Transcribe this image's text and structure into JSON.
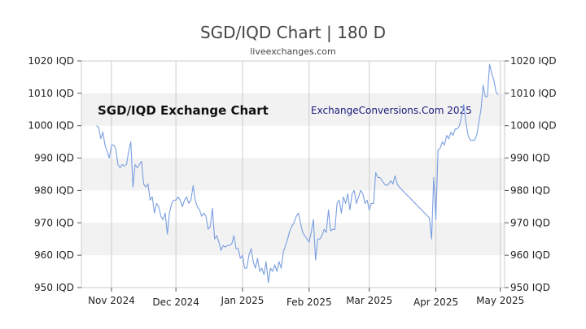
{
  "header": {
    "title": "SGD/IQD Chart | 180 D",
    "subtitle": "liveexchanges.com"
  },
  "watermarks": {
    "left": "SGD/IQD Exchange Chart",
    "right": "ExchangeConversions.Com 2025"
  },
  "colors": {
    "line": "#7a9ee0",
    "band": "#f2f2f2",
    "grid": "#cccccc"
  },
  "chart_data": {
    "type": "line",
    "ylim": [
      950,
      1020
    ],
    "grid": true,
    "y_ticks": [
      {
        "value": 950,
        "label": "950 IQD"
      },
      {
        "value": 960,
        "label": "960 IQD"
      },
      {
        "value": 970,
        "label": "970 IQD"
      },
      {
        "value": 980,
        "label": "980 IQD"
      },
      {
        "value": 990,
        "label": "990 IQD"
      },
      {
        "value": 1000,
        "label": "1000 IQD"
      },
      {
        "value": 1010,
        "label": "1010 IQD"
      },
      {
        "value": 1020,
        "label": "1020 IQD"
      }
    ],
    "x_ticks": [
      {
        "date": "2024-11-01",
        "label": "Nov 2024"
      },
      {
        "date": "2024-12-01",
        "label": "Dec 2024"
      },
      {
        "date": "2025-01-01",
        "label": "Jan 2025"
      },
      {
        "date": "2025-02-01",
        "label": "Feb 2025"
      },
      {
        "date": "2025-03-01",
        "label": "Mar 2025"
      },
      {
        "date": "2025-04-01",
        "label": "Apr 2025"
      },
      {
        "date": "2025-05-01",
        "label": "May 2025"
      }
    ],
    "series": [
      {
        "points": [
          [
            "2024-10-25",
            1000
          ],
          [
            "2024-10-26",
            999.5
          ],
          [
            "2024-10-27",
            996
          ],
          [
            "2024-10-28",
            998
          ],
          [
            "2024-10-29",
            994
          ],
          [
            "2024-10-30",
            992
          ],
          [
            "2024-10-31",
            990
          ],
          [
            "2024-11-01",
            994
          ],
          [
            "2024-11-02",
            994
          ],
          [
            "2024-11-03",
            993
          ],
          [
            "2024-11-04",
            988
          ],
          [
            "2024-11-05",
            987
          ],
          [
            "2024-11-06",
            988
          ],
          [
            "2024-11-07",
            987.5
          ],
          [
            "2024-11-08",
            988
          ],
          [
            "2024-11-09",
            992
          ],
          [
            "2024-11-10",
            995
          ],
          [
            "2024-11-11",
            981
          ],
          [
            "2024-11-12",
            988
          ],
          [
            "2024-11-13",
            987
          ],
          [
            "2024-11-14",
            988
          ],
          [
            "2024-11-15",
            989
          ],
          [
            "2024-11-16",
            982
          ],
          [
            "2024-11-17",
            981
          ],
          [
            "2024-11-18",
            982
          ],
          [
            "2024-11-19",
            977
          ],
          [
            "2024-11-20",
            978
          ],
          [
            "2024-11-21",
            973
          ],
          [
            "2024-11-22",
            976
          ],
          [
            "2024-11-23",
            975
          ],
          [
            "2024-11-24",
            972
          ],
          [
            "2024-11-25",
            971
          ],
          [
            "2024-11-26",
            973
          ],
          [
            "2024-11-27",
            966.5
          ],
          [
            "2024-11-28",
            973
          ],
          [
            "2024-11-29",
            976
          ],
          [
            "2024-11-30",
            977
          ],
          [
            "2024-12-01",
            977
          ],
          [
            "2024-12-02",
            978
          ],
          [
            "2024-12-03",
            977
          ],
          [
            "2024-12-04",
            975
          ],
          [
            "2024-12-05",
            977
          ],
          [
            "2024-12-06",
            978
          ],
          [
            "2024-12-07",
            976
          ],
          [
            "2024-12-08",
            977
          ],
          [
            "2024-12-09",
            981.5
          ],
          [
            "2024-12-10",
            977
          ],
          [
            "2024-12-11",
            975
          ],
          [
            "2024-12-12",
            974
          ],
          [
            "2024-12-13",
            972
          ],
          [
            "2024-12-14",
            973
          ],
          [
            "2024-12-15",
            972
          ],
          [
            "2024-12-16",
            968
          ],
          [
            "2024-12-17",
            969
          ],
          [
            "2024-12-18",
            974.5
          ],
          [
            "2024-12-19",
            965
          ],
          [
            "2024-12-20",
            966
          ],
          [
            "2024-12-21",
            964
          ],
          [
            "2024-12-22",
            961.5
          ],
          [
            "2024-12-23",
            963
          ],
          [
            "2024-12-24",
            962.5
          ],
          [
            "2024-12-25",
            963
          ],
          [
            "2024-12-26",
            963
          ],
          [
            "2024-12-27",
            963.5
          ],
          [
            "2024-12-28",
            966
          ],
          [
            "2024-12-29",
            962
          ],
          [
            "2024-12-30",
            962
          ],
          [
            "2024-12-31",
            959
          ],
          [
            "2025-01-01",
            960
          ],
          [
            "2025-01-02",
            956
          ],
          [
            "2025-01-03",
            956
          ],
          [
            "2025-01-04",
            960
          ],
          [
            "2025-01-05",
            962
          ],
          [
            "2025-01-06",
            958
          ],
          [
            "2025-01-07",
            956
          ],
          [
            "2025-01-08",
            959
          ],
          [
            "2025-01-09",
            955
          ],
          [
            "2025-01-10",
            956
          ],
          [
            "2025-01-11",
            954
          ],
          [
            "2025-01-12",
            958
          ],
          [
            "2025-01-13",
            951.5
          ],
          [
            "2025-01-14",
            956
          ],
          [
            "2025-01-15",
            955
          ],
          [
            "2025-01-16",
            957
          ],
          [
            "2025-01-17",
            955
          ],
          [
            "2025-01-18",
            958
          ],
          [
            "2025-01-19",
            956
          ],
          [
            "2025-01-20",
            961
          ],
          [
            "2025-01-21",
            963
          ],
          [
            "2025-01-22",
            965
          ],
          [
            "2025-01-23",
            967.5
          ],
          [
            "2025-01-24",
            969
          ],
          [
            "2025-01-25",
            970
          ],
          [
            "2025-01-26",
            972
          ],
          [
            "2025-01-27",
            973
          ],
          [
            "2025-01-28",
            970
          ],
          [
            "2025-01-29",
            967
          ],
          [
            "2025-01-30",
            966
          ],
          [
            "2025-01-31",
            965
          ],
          [
            "2025-02-01",
            964
          ],
          [
            "2025-02-02",
            967
          ],
          [
            "2025-02-03",
            971
          ],
          [
            "2025-02-04",
            958.5
          ],
          [
            "2025-02-05",
            965
          ],
          [
            "2025-02-06",
            965
          ],
          [
            "2025-02-07",
            966
          ],
          [
            "2025-02-08",
            968
          ],
          [
            "2025-02-09",
            967
          ],
          [
            "2025-02-10",
            974
          ],
          [
            "2025-02-11",
            967.5
          ],
          [
            "2025-02-12",
            968
          ],
          [
            "2025-02-13",
            968
          ],
          [
            "2025-02-14",
            976
          ],
          [
            "2025-02-15",
            977
          ],
          [
            "2025-02-16",
            973
          ],
          [
            "2025-02-17",
            978
          ],
          [
            "2025-02-18",
            976
          ],
          [
            "2025-02-19",
            979
          ],
          [
            "2025-02-20",
            974
          ],
          [
            "2025-02-21",
            979
          ],
          [
            "2025-02-22",
            980
          ],
          [
            "2025-02-23",
            976
          ],
          [
            "2025-02-24",
            978
          ],
          [
            "2025-02-25",
            980
          ],
          [
            "2025-02-26",
            979
          ],
          [
            "2025-02-27",
            976
          ],
          [
            "2025-02-28",
            977
          ],
          [
            "2025-03-01",
            974
          ],
          [
            "2025-03-02",
            976
          ],
          [
            "2025-03-03",
            976
          ],
          [
            "2025-03-04",
            985.5
          ],
          [
            "2025-03-05",
            984
          ],
          [
            "2025-03-06",
            984
          ],
          [
            "2025-03-07",
            983
          ],
          [
            "2025-03-08",
            982
          ],
          [
            "2025-03-09",
            981.5
          ],
          [
            "2025-03-10",
            982
          ],
          [
            "2025-03-11",
            983
          ],
          [
            "2025-03-12",
            982
          ],
          [
            "2025-03-13",
            984.5
          ],
          [
            "2025-03-14",
            982
          ],
          [
            "2025-03-15",
            981
          ],
          [
            "2025-03-29",
            971.5
          ],
          [
            "2025-03-30",
            965
          ],
          [
            "2025-03-31",
            984
          ],
          [
            "2025-04-01",
            971
          ],
          [
            "2025-04-02",
            992.5
          ],
          [
            "2025-04-03",
            993
          ],
          [
            "2025-04-04",
            995
          ],
          [
            "2025-04-05",
            994
          ],
          [
            "2025-04-06",
            997
          ],
          [
            "2025-04-07",
            996
          ],
          [
            "2025-04-08",
            998
          ],
          [
            "2025-04-09",
            997
          ],
          [
            "2025-04-10",
            999
          ],
          [
            "2025-04-11",
            999
          ],
          [
            "2025-04-12",
            1000
          ],
          [
            "2025-04-13",
            1003
          ],
          [
            "2025-04-14",
            1006.5
          ],
          [
            "2025-04-15",
            1001
          ],
          [
            "2025-04-16",
            997
          ],
          [
            "2025-04-17",
            995.5
          ],
          [
            "2025-04-18",
            995.5
          ],
          [
            "2025-04-19",
            995.5
          ],
          [
            "2025-04-20",
            997
          ],
          [
            "2025-04-21",
            1001
          ],
          [
            "2025-04-22",
            1005
          ],
          [
            "2025-04-23",
            1012.5
          ],
          [
            "2025-04-24",
            1009
          ],
          [
            "2025-04-25",
            1009
          ],
          [
            "2025-04-26",
            1019
          ],
          [
            "2025-04-27",
            1016
          ],
          [
            "2025-04-28",
            1014
          ],
          [
            "2025-04-29",
            1010.5
          ],
          [
            "2025-04-30",
            1009.5
          ]
        ]
      }
    ]
  }
}
